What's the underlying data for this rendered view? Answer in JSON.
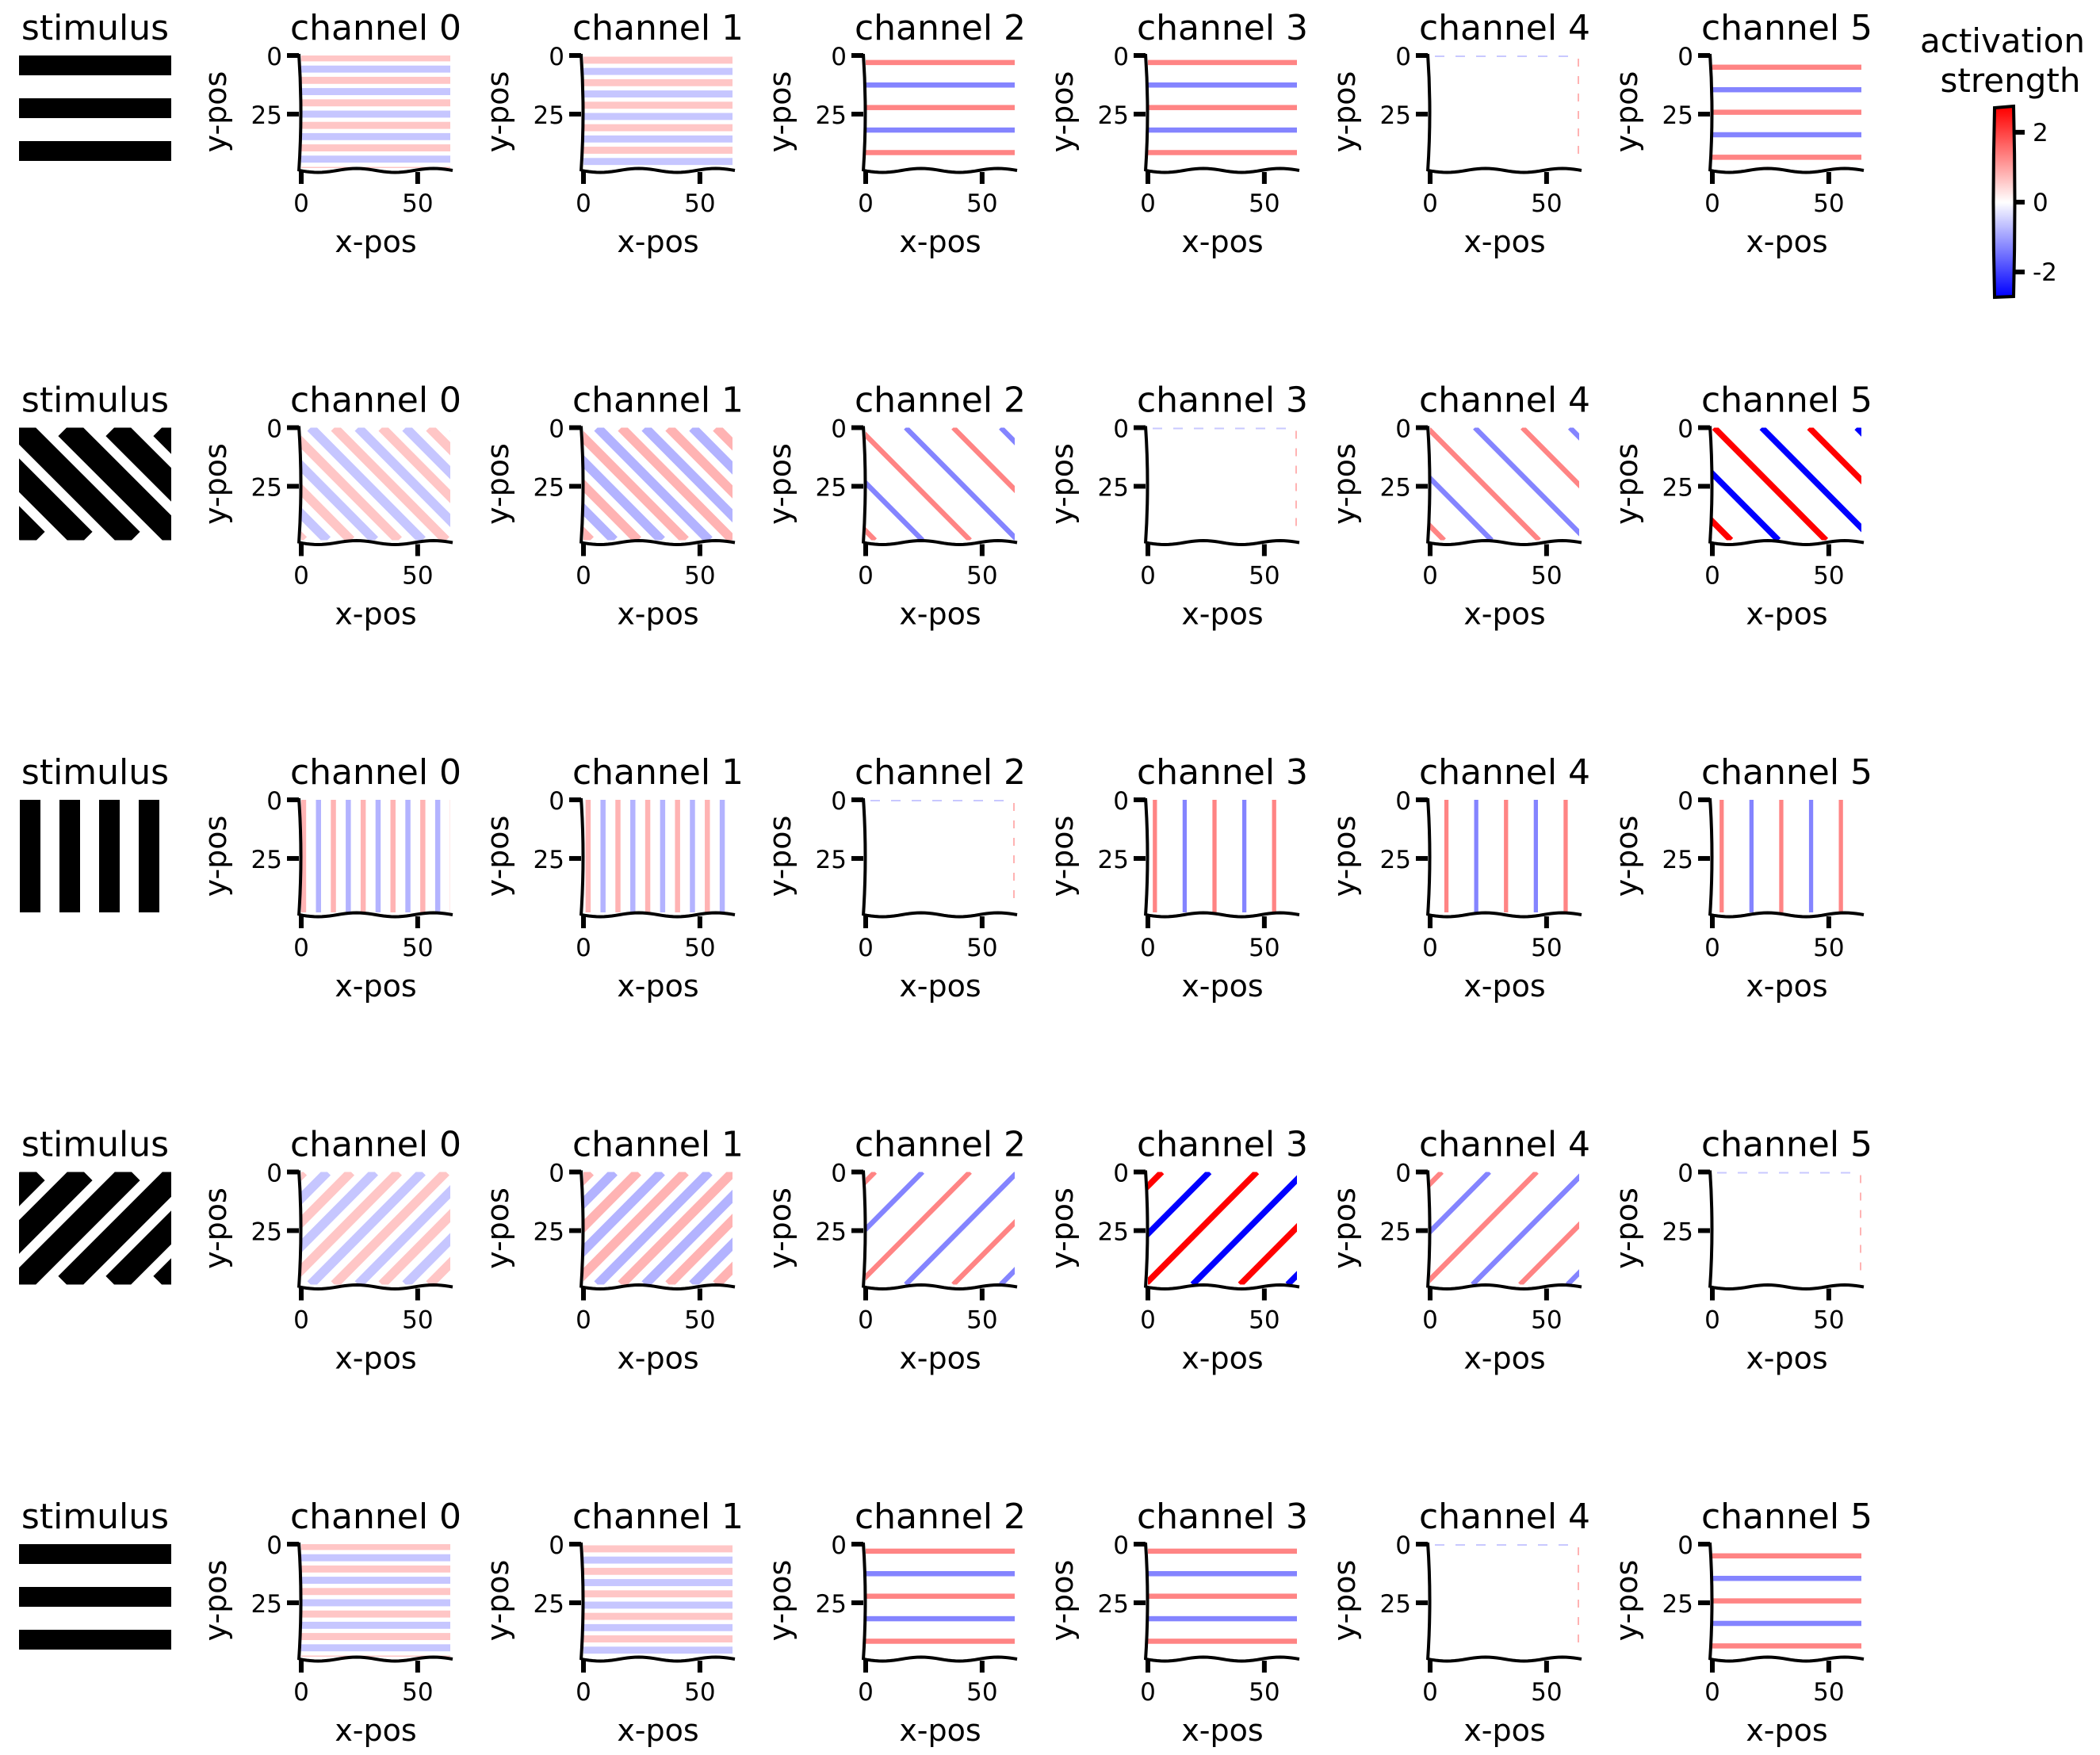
{
  "figure": {
    "stimulus_title": "stimulus",
    "channel_title_prefix": "channel",
    "xlabel": "x-pos",
    "ylabel": "y-pos",
    "colorbar_title_line1": "activation",
    "colorbar_title_line2": "strength"
  },
  "chart_data": {
    "type": "heatmap",
    "description_of_axes": "each subplot is a 64x48 activation map",
    "xlabel": "x-pos",
    "ylabel": "y-pos",
    "xlim": [
      0,
      64
    ],
    "ylim": [
      48,
      0
    ],
    "xticks": [
      0,
      50
    ],
    "yticks": [
      0,
      25
    ],
    "colormap": {
      "name": "bwr",
      "low_color": "#0000ff",
      "mid_color": "#ffffff",
      "high_color": "#ff0000"
    },
    "colorbar": {
      "range": [
        -2.7,
        2.7
      ],
      "ticks": [
        2,
        0,
        -2
      ],
      "tick_labels": [
        "2",
        "0",
        "-2"
      ]
    },
    "channels": [
      0,
      1,
      2,
      3,
      4,
      5
    ],
    "rows": [
      {
        "stimulus": "horizontal",
        "channels": [
          {
            "channel": 0,
            "orientation": "horizontal",
            "amplitude": 0.6,
            "stripe_width": 3.0,
            "spacing": 4.8,
            "phase": 1,
            "blank": false
          },
          {
            "channel": 1,
            "orientation": "horizontal",
            "amplitude": 0.6,
            "stripe_width": 3.0,
            "spacing": 4.8,
            "phase": 2,
            "blank": false
          },
          {
            "channel": 2,
            "orientation": "horizontal",
            "amplitude": 1.3,
            "stripe_width": 2.2,
            "spacing": 9.6,
            "phase": 3,
            "blank": false
          },
          {
            "channel": 3,
            "orientation": "horizontal",
            "amplitude": 1.3,
            "stripe_width": 2.2,
            "spacing": 9.6,
            "phase": 3,
            "blank": false
          },
          {
            "channel": 4,
            "orientation": "horizontal",
            "amplitude": 0.0,
            "stripe_width": 2.0,
            "spacing": 9.6,
            "phase": 0,
            "blank": true
          },
          {
            "channel": 5,
            "orientation": "horizontal",
            "amplitude": 1.3,
            "stripe_width": 2.2,
            "spacing": 9.6,
            "phase": 5,
            "blank": false
          }
        ]
      },
      {
        "stimulus": "diag_down",
        "channels": [
          {
            "channel": 0,
            "orientation": "diag_down",
            "amplitude": 0.6,
            "stripe_width": 4.0,
            "spacing": 10.2,
            "phase": 1,
            "blank": false
          },
          {
            "channel": 1,
            "orientation": "diag_down",
            "amplitude": 0.8,
            "stripe_width": 4.0,
            "spacing": 10.2,
            "phase": 3,
            "blank": false
          },
          {
            "channel": 2,
            "orientation": "diag_down",
            "amplitude": 1.3,
            "stripe_width": 2.2,
            "spacing": 20.4,
            "phase": 4,
            "blank": false
          },
          {
            "channel": 3,
            "orientation": "diag_down",
            "amplitude": 0.0,
            "stripe_width": 2.0,
            "spacing": 20.4,
            "phase": 0,
            "blank": true
          },
          {
            "channel": 4,
            "orientation": "diag_down",
            "amplitude": 1.3,
            "stripe_width": 2.2,
            "spacing": 20.4,
            "phase": 6,
            "blank": false
          },
          {
            "channel": 5,
            "orientation": "diag_down",
            "amplitude": 2.7,
            "stripe_width": 2.6,
            "spacing": 20.4,
            "phase": 8,
            "blank": false
          }
        ]
      },
      {
        "stimulus": "vertical",
        "channels": [
          {
            "channel": 0,
            "orientation": "vertical",
            "amplitude": 0.8,
            "stripe_width": 2.2,
            "spacing": 6.4,
            "phase": 1,
            "blank": false
          },
          {
            "channel": 1,
            "orientation": "vertical",
            "amplitude": 0.8,
            "stripe_width": 2.2,
            "spacing": 6.4,
            "phase": 2,
            "blank": false
          },
          {
            "channel": 2,
            "orientation": "vertical",
            "amplitude": 0.0,
            "stripe_width": 2.0,
            "spacing": 12.8,
            "phase": 0,
            "blank": true
          },
          {
            "channel": 3,
            "orientation": "vertical",
            "amplitude": 1.3,
            "stripe_width": 1.8,
            "spacing": 12.8,
            "phase": 3,
            "blank": false
          },
          {
            "channel": 4,
            "orientation": "vertical",
            "amplitude": 1.3,
            "stripe_width": 1.8,
            "spacing": 12.8,
            "phase": 7,
            "blank": false
          },
          {
            "channel": 5,
            "orientation": "vertical",
            "amplitude": 1.3,
            "stripe_width": 1.8,
            "spacing": 12.8,
            "phase": 4,
            "blank": false
          }
        ]
      },
      {
        "stimulus": "diag_up",
        "channels": [
          {
            "channel": 0,
            "orientation": "diag_up",
            "amplitude": 0.6,
            "stripe_width": 4.0,
            "spacing": 10.2,
            "phase": 1,
            "blank": false
          },
          {
            "channel": 1,
            "orientation": "diag_up",
            "amplitude": 0.8,
            "stripe_width": 4.0,
            "spacing": 10.2,
            "phase": 3,
            "blank": false
          },
          {
            "channel": 2,
            "orientation": "diag_up",
            "amplitude": 1.3,
            "stripe_width": 2.2,
            "spacing": 20.4,
            "phase": 4,
            "blank": false
          },
          {
            "channel": 3,
            "orientation": "diag_up",
            "amplitude": 2.7,
            "stripe_width": 2.6,
            "spacing": 20.4,
            "phase": 6,
            "blank": false
          },
          {
            "channel": 4,
            "orientation": "diag_up",
            "amplitude": 1.3,
            "stripe_width": 2.2,
            "spacing": 20.4,
            "phase": 5,
            "blank": false
          },
          {
            "channel": 5,
            "orientation": "diag_up",
            "amplitude": 0.0,
            "stripe_width": 2.0,
            "spacing": 20.4,
            "phase": 0,
            "blank": true
          }
        ]
      },
      {
        "stimulus": "horizontal",
        "channels": [
          {
            "channel": 0,
            "orientation": "horizontal",
            "amplitude": 0.6,
            "stripe_width": 3.0,
            "spacing": 4.8,
            "phase": 1,
            "blank": false
          },
          {
            "channel": 1,
            "orientation": "horizontal",
            "amplitude": 0.6,
            "stripe_width": 3.0,
            "spacing": 4.8,
            "phase": 2,
            "blank": false
          },
          {
            "channel": 2,
            "orientation": "horizontal",
            "amplitude": 1.3,
            "stripe_width": 2.2,
            "spacing": 9.6,
            "phase": 3,
            "blank": false
          },
          {
            "channel": 3,
            "orientation": "horizontal",
            "amplitude": 1.3,
            "stripe_width": 2.2,
            "spacing": 9.6,
            "phase": 3,
            "blank": false
          },
          {
            "channel": 4,
            "orientation": "horizontal",
            "amplitude": 0.0,
            "stripe_width": 2.0,
            "spacing": 9.6,
            "phase": 0,
            "blank": true
          },
          {
            "channel": 5,
            "orientation": "horizontal",
            "amplitude": 1.3,
            "stripe_width": 2.2,
            "spacing": 9.6,
            "phase": 5,
            "blank": false
          }
        ]
      }
    ]
  }
}
